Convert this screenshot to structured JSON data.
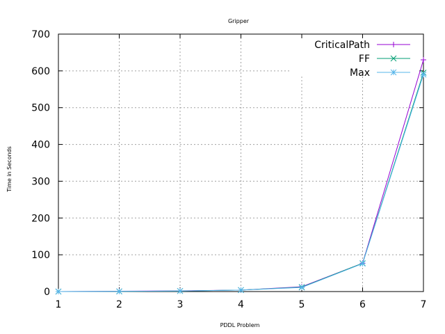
{
  "chart_data": {
    "type": "line",
    "title": "Gripper",
    "xlabel": "PDDL Problem",
    "ylabel": "Time in Seconds",
    "x": [
      1,
      2,
      3,
      4,
      5,
      6,
      7
    ],
    "xlim": [
      1,
      7
    ],
    "ylim": [
      0,
      700
    ],
    "xticks": [
      1,
      2,
      3,
      4,
      5,
      6,
      7
    ],
    "yticks": [
      0,
      100,
      200,
      300,
      400,
      500,
      600,
      700
    ],
    "grid": true,
    "legend_position": "top-right",
    "series": [
      {
        "name": "CriticalPath",
        "color": "#9400d3",
        "marker": "plus",
        "values": [
          0,
          1,
          2,
          4,
          13,
          77,
          630
        ]
      },
      {
        "name": "FF",
        "color": "#009e73",
        "marker": "x",
        "values": [
          0,
          0.5,
          1.5,
          4,
          12,
          77,
          595
        ]
      },
      {
        "name": "Max",
        "color": "#56b4e9",
        "marker": "star",
        "values": [
          0,
          0.5,
          1.5,
          4,
          11,
          76,
          590
        ]
      }
    ]
  }
}
